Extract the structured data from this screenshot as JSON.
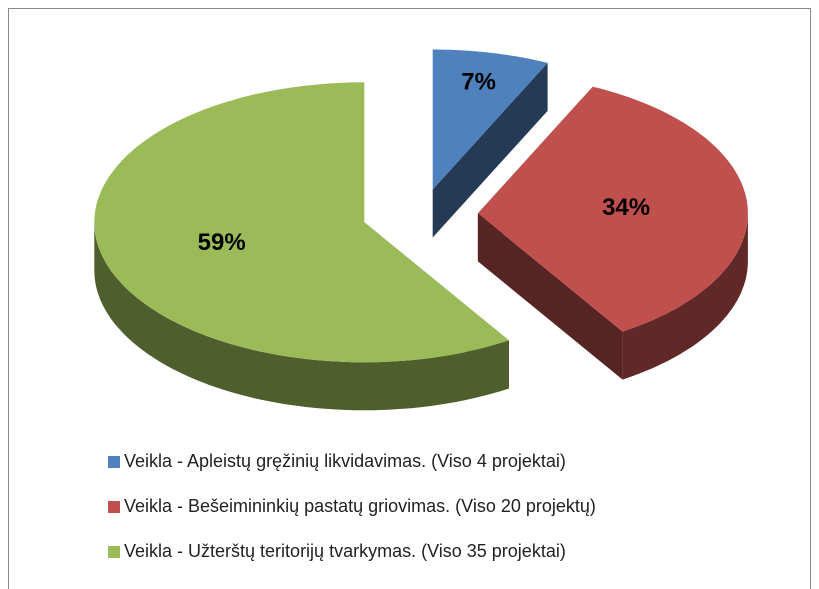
{
  "chart_data": {
    "type": "pie3d",
    "categories": [
      "Veikla - Apleistų gręžinių likvidavimas. (Viso 4 projektai)",
      "Veikla - Bešeimininkių pastatų griovimas. (Viso 20 projektų)",
      "Veikla - Užterštų teritorijų tvarkymas. (Viso 35 projektai)"
    ],
    "values": [
      7,
      34,
      59
    ],
    "value_labels": [
      "7%",
      "34%",
      "59%"
    ],
    "colors": [
      "#4f81bd",
      "#c0504d",
      "#9bbb59"
    ],
    "legend": "bottom"
  }
}
